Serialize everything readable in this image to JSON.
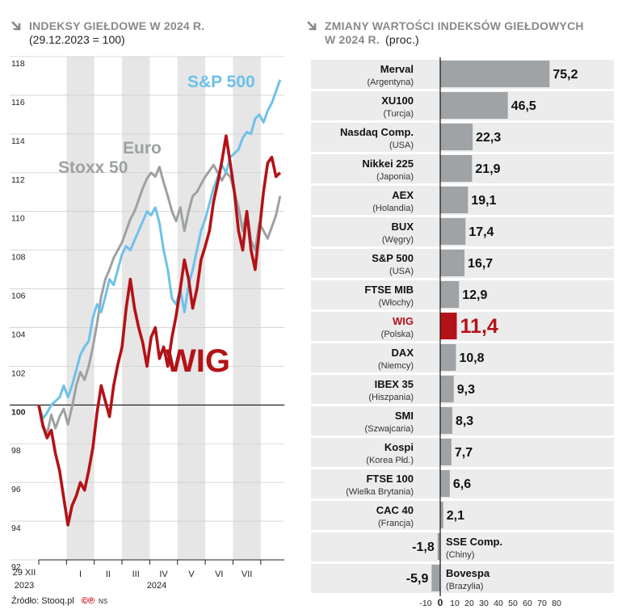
{
  "left_panel": {
    "title": "INDEKSY GIEŁDOWE W 2024 R.",
    "subtitle": "(29.12.2023 = 100)"
  },
  "right_panel": {
    "title_line1": "ZMIANY WARTOŚCI INDEKSÓW GIEŁDOWYCH",
    "title_line2": "W 2024 R.",
    "title_unit": "(proc.)"
  },
  "footer": {
    "source": "Źródło: Stooq.pl",
    "cp": "©℗",
    "ns": "NS"
  },
  "colors": {
    "wig": "#b31217",
    "sp500": "#6ec1ea",
    "eurostoxx": "#9ea1a3",
    "bar": "#9fa3a6",
    "band": "#e6e6e6",
    "title_gray": "#8a8a8a"
  },
  "chart_data": [
    {
      "type": "line",
      "title": "INDEKSY GIEŁDOWE W 2024 R.",
      "subtitle": "(29.12.2023 = 100)",
      "ylim": [
        92,
        118
      ],
      "yticks": [
        92,
        94,
        96,
        98,
        100,
        102,
        104,
        106,
        108,
        110,
        112,
        114,
        116,
        118
      ],
      "baseline": 100,
      "x_start_label": [
        "29 XII",
        "2023"
      ],
      "year_label": "2024",
      "months": [
        "I",
        "II",
        "III",
        "IV",
        "V",
        "VI",
        "VII"
      ],
      "series": [
        {
          "name": "WIG",
          "label_lines": [
            "WIG"
          ],
          "color": "#b31217",
          "points": [
            [
              0,
              100
            ],
            [
              0.15,
              98.9
            ],
            [
              0.3,
              98.3
            ],
            [
              0.45,
              98.7
            ],
            [
              0.6,
              97.5
            ],
            [
              0.75,
              96.6
            ],
            [
              0.9,
              95.2
            ],
            [
              1.05,
              93.8
            ],
            [
              1.2,
              94.8
            ],
            [
              1.35,
              95.3
            ],
            [
              1.5,
              96.0
            ],
            [
              1.65,
              95.6
            ],
            [
              1.8,
              96.6
            ],
            [
              1.95,
              97.8
            ],
            [
              2.1,
              99.6
            ],
            [
              2.25,
              101.0
            ],
            [
              2.4,
              100.2
            ],
            [
              2.55,
              99.4
            ],
            [
              2.7,
              101.0
            ],
            [
              2.85,
              102.1
            ],
            [
              3.0,
              103.0
            ],
            [
              3.15,
              105.0
            ],
            [
              3.3,
              106.5
            ],
            [
              3.45,
              105.0
            ],
            [
              3.6,
              104.0
            ],
            [
              3.75,
              103.2
            ],
            [
              3.9,
              102.0
            ],
            [
              4.05,
              103.5
            ],
            [
              4.2,
              104.0
            ],
            [
              4.35,
              102.4
            ],
            [
              4.5,
              103.0
            ],
            [
              4.65,
              102.0
            ],
            [
              4.8,
              103.5
            ],
            [
              4.95,
              104.6
            ],
            [
              5.1,
              106.0
            ],
            [
              5.25,
              107.5
            ],
            [
              5.4,
              106.5
            ],
            [
              5.55,
              105.0
            ],
            [
              5.7,
              106.0
            ],
            [
              5.85,
              107.5
            ],
            [
              6.0,
              108.2
            ],
            [
              6.15,
              109.0
            ],
            [
              6.3,
              110.5
            ],
            [
              6.45,
              111.5
            ],
            [
              6.6,
              112.6
            ],
            [
              6.75,
              113.9
            ],
            [
              6.9,
              112.5
            ],
            [
              7.05,
              111.0
            ],
            [
              7.2,
              109.0
            ],
            [
              7.35,
              108.0
            ],
            [
              7.5,
              110.0
            ],
            [
              7.65,
              108.0
            ],
            [
              7.8,
              107.0
            ],
            [
              7.95,
              109.0
            ],
            [
              8.1,
              111.0
            ],
            [
              8.25,
              112.5
            ],
            [
              8.4,
              112.8
            ],
            [
              8.55,
              111.8
            ],
            [
              8.7,
              112.0
            ]
          ]
        },
        {
          "name": "S&P 500",
          "label_lines": [
            "S&P 500"
          ],
          "color": "#6ec1ea",
          "points": [
            [
              0,
              100
            ],
            [
              0.15,
              99.3
            ],
            [
              0.3,
              99.6
            ],
            [
              0.45,
              100.0
            ],
            [
              0.6,
              100.2
            ],
            [
              0.75,
              100.4
            ],
            [
              0.9,
              101.0
            ],
            [
              1.05,
              100.4
            ],
            [
              1.2,
              101.0
            ],
            [
              1.35,
              101.8
            ],
            [
              1.5,
              102.6
            ],
            [
              1.65,
              103.0
            ],
            [
              1.8,
              103.3
            ],
            [
              1.95,
              104.5
            ],
            [
              2.1,
              105.2
            ],
            [
              2.25,
              104.8
            ],
            [
              2.4,
              105.6
            ],
            [
              2.55,
              106.5
            ],
            [
              2.7,
              106.2
            ],
            [
              2.85,
              107.0
            ],
            [
              3.0,
              107.8
            ],
            [
              3.15,
              108.2
            ],
            [
              3.3,
              108.0
            ],
            [
              3.45,
              108.5
            ],
            [
              3.6,
              109.0
            ],
            [
              3.75,
              109.5
            ],
            [
              3.9,
              110.0
            ],
            [
              4.05,
              109.8
            ],
            [
              4.2,
              110.2
            ],
            [
              4.35,
              109.4
            ],
            [
              4.5,
              108.0
            ],
            [
              4.65,
              107.0
            ],
            [
              4.8,
              105.5
            ],
            [
              4.95,
              105.2
            ],
            [
              5.1,
              106.0
            ],
            [
              5.25,
              104.8
            ],
            [
              5.4,
              106.2
            ],
            [
              5.55,
              107.0
            ],
            [
              5.7,
              108.0
            ],
            [
              5.85,
              109.0
            ],
            [
              6.0,
              109.6
            ],
            [
              6.15,
              110.4
            ],
            [
              6.3,
              111.2
            ],
            [
              6.45,
              111.8
            ],
            [
              6.6,
              112.4
            ],
            [
              6.75,
              112.0
            ],
            [
              6.9,
              112.8
            ],
            [
              7.05,
              113.0
            ],
            [
              7.2,
              113.2
            ],
            [
              7.35,
              113.8
            ],
            [
              7.5,
              114.1
            ],
            [
              7.65,
              114.0
            ],
            [
              7.8,
              114.8
            ],
            [
              7.95,
              115.0
            ],
            [
              8.1,
              114.6
            ],
            [
              8.25,
              115.2
            ],
            [
              8.4,
              115.6
            ],
            [
              8.55,
              116.2
            ],
            [
              8.7,
              116.8
            ]
          ]
        },
        {
          "name": "Euro Stoxx 50",
          "label_lines": [
            "Euro",
            "Stoxx 50"
          ],
          "color": "#9ea1a3",
          "points": [
            [
              0,
              100
            ],
            [
              0.15,
              99.0
            ],
            [
              0.3,
              98.5
            ],
            [
              0.45,
              99.5
            ],
            [
              0.6,
              98.8
            ],
            [
              0.75,
              99.4
            ],
            [
              0.9,
              99.8
            ],
            [
              1.05,
              99.0
            ],
            [
              1.2,
              99.9
            ],
            [
              1.35,
              101.0
            ],
            [
              1.5,
              101.7
            ],
            [
              1.65,
              101.3
            ],
            [
              1.8,
              102.0
            ],
            [
              1.95,
              103.0
            ],
            [
              2.1,
              104.2
            ],
            [
              2.25,
              105.6
            ],
            [
              2.4,
              106.5
            ],
            [
              2.55,
              107.0
            ],
            [
              2.7,
              107.6
            ],
            [
              2.85,
              108.0
            ],
            [
              3.0,
              108.4
            ],
            [
              3.15,
              109.0
            ],
            [
              3.3,
              109.6
            ],
            [
              3.45,
              110.0
            ],
            [
              3.6,
              110.6
            ],
            [
              3.75,
              111.2
            ],
            [
              3.9,
              111.7
            ],
            [
              4.05,
              112.0
            ],
            [
              4.2,
              111.8
            ],
            [
              4.35,
              112.3
            ],
            [
              4.5,
              111.5
            ],
            [
              4.65,
              110.8
            ],
            [
              4.8,
              110.0
            ],
            [
              4.95,
              109.5
            ],
            [
              5.1,
              110.2
            ],
            [
              5.25,
              109.0
            ],
            [
              5.4,
              110.0
            ],
            [
              5.55,
              110.8
            ],
            [
              5.7,
              111.0
            ],
            [
              5.85,
              111.4
            ],
            [
              6.0,
              111.8
            ],
            [
              6.15,
              112.1
            ],
            [
              6.3,
              112.4
            ],
            [
              6.45,
              112.0
            ],
            [
              6.6,
              111.6
            ],
            [
              6.75,
              112.0
            ],
            [
              6.9,
              111.8
            ],
            [
              7.05,
              111.0
            ],
            [
              7.2,
              110.2
            ],
            [
              7.35,
              109.0
            ],
            [
              7.5,
              110.0
            ],
            [
              7.65,
              108.5
            ],
            [
              7.8,
              108.0
            ],
            [
              7.95,
              109.4
            ],
            [
              8.1,
              109.0
            ],
            [
              8.25,
              108.6
            ],
            [
              8.4,
              109.2
            ],
            [
              8.55,
              109.8
            ],
            [
              8.7,
              110.8
            ]
          ]
        }
      ]
    },
    {
      "type": "bar",
      "orientation": "horizontal",
      "title": "ZMIANY WARTOŚCI INDEKSÓW GIEŁDOWYCH W 2024 R.",
      "unit": "(proc.)",
      "xlim": [
        -10,
        80
      ],
      "xticks": [
        -10,
        0,
        10,
        20,
        30,
        40,
        50,
        60,
        70,
        80
      ],
      "highlight": "WIG",
      "rows": [
        {
          "name": "Merval",
          "country": "(Argentyna)",
          "value": 75.2,
          "label": "75,2"
        },
        {
          "name": "XU100",
          "country": "(Turcja)",
          "value": 46.5,
          "label": "46,5"
        },
        {
          "name": "Nasdaq Comp.",
          "country": "(USA)",
          "value": 22.3,
          "label": "22,3"
        },
        {
          "name": "Nikkei 225",
          "country": "(Japonia)",
          "value": 21.9,
          "label": "21,9"
        },
        {
          "name": "AEX",
          "country": "(Holandia)",
          "value": 19.1,
          "label": "19,1"
        },
        {
          "name": "BUX",
          "country": "(Węgry)",
          "value": 17.4,
          "label": "17,4"
        },
        {
          "name": "S&P 500",
          "country": "(USA)",
          "value": 16.7,
          "label": "16,7"
        },
        {
          "name": "FTSE MIB",
          "country": "(Włochy)",
          "value": 12.9,
          "label": "12,9"
        },
        {
          "name": "WIG",
          "country": "(Polska)",
          "value": 11.4,
          "label": "11,4"
        },
        {
          "name": "DAX",
          "country": "(Niemcy)",
          "value": 10.8,
          "label": "10,8"
        },
        {
          "name": "IBEX 35",
          "country": "(Hiszpania)",
          "value": 9.3,
          "label": "9,3"
        },
        {
          "name": "SMI",
          "country": "(Szwajcaria)",
          "value": 8.3,
          "label": "8,3"
        },
        {
          "name": "Kospi",
          "country": "(Korea Płd.)",
          "value": 7.7,
          "label": "7,7"
        },
        {
          "name": "FTSE 100",
          "country": "(Wielka Brytania)",
          "value": 6.6,
          "label": "6,6"
        },
        {
          "name": "CAC 40",
          "country": "(Francja)",
          "value": 2.1,
          "label": "2,1"
        },
        {
          "name": "SSE Comp.",
          "country": "(Chiny)",
          "value": -1.8,
          "label": "-1,8"
        },
        {
          "name": "Bovespa",
          "country": "(Brazylia)",
          "value": -5.9,
          "label": "-5,9"
        }
      ]
    }
  ]
}
